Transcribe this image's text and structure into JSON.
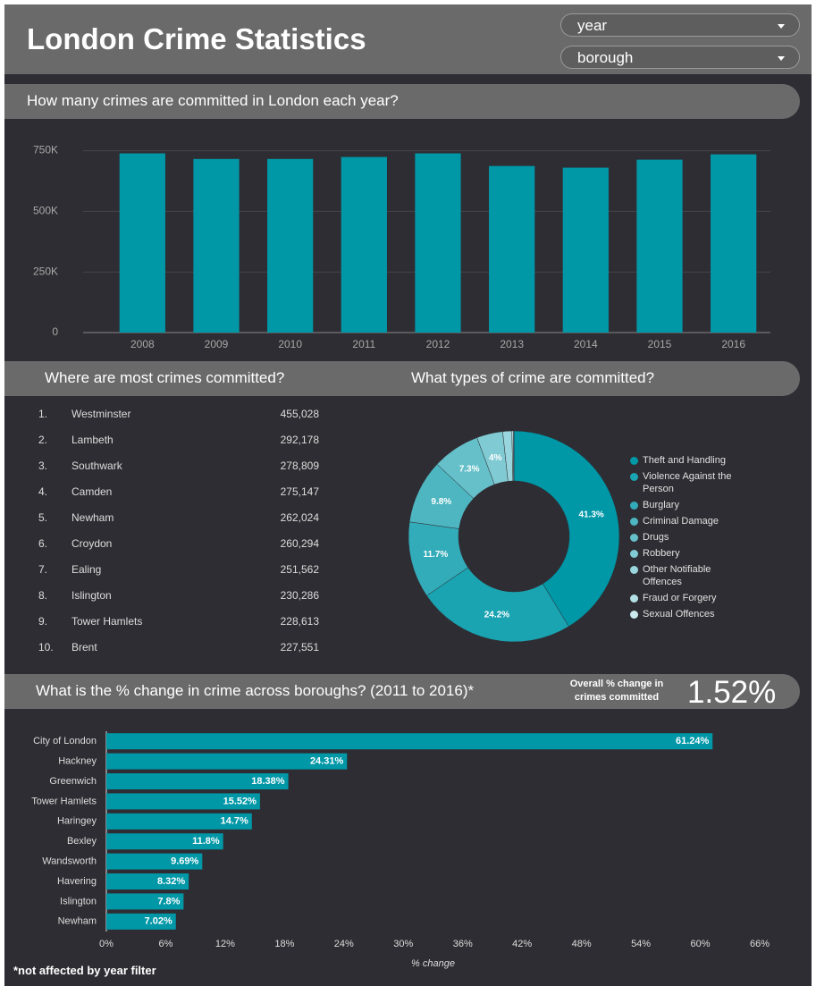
{
  "header": {
    "title": "London Crime Statistics",
    "filters": [
      "year",
      "borough"
    ]
  },
  "chart_data": [
    {
      "type": "bar",
      "title": "How many crimes are committed in London each year?",
      "categories": [
        "2008",
        "2009",
        "2010",
        "2011",
        "2012",
        "2013",
        "2014",
        "2015",
        "2016"
      ],
      "values": [
        739000,
        716000,
        716000,
        724000,
        739000,
        687000,
        680000,
        713000,
        735000
      ],
      "color": "#0097a7",
      "ylim": [
        0,
        800000
      ],
      "yticks": [
        0,
        {
          "value": 250000,
          "label": "250K"
        },
        {
          "value": 500000,
          "label": "500K"
        },
        {
          "value": 750000,
          "label": "750K"
        }
      ],
      "grid": true
    },
    {
      "type": "donut",
      "title": "What types of crime are committed?",
      "categories": [
        "Theft and Handling",
        "Violence Against the Person",
        "Burglary",
        "Criminal Damage",
        "Drugs",
        "Robbery",
        "Other Notifiable Offences",
        "Fraud or Forgery",
        "Sexual Offences"
      ],
      "values": [
        41.3,
        24.2,
        11.7,
        9.8,
        7.3,
        4,
        1.4,
        0.2,
        0.1
      ],
      "value_labels": [
        "41.3%",
        "24.2%",
        "11.7%",
        "9.8%",
        "7.3%",
        "4%",
        null,
        null,
        null
      ],
      "colors": [
        "#0097a7",
        "#1aa3b1",
        "#33acb9",
        "#4db6c1",
        "#66c0ca",
        "#80cbd3",
        "#99d5dc",
        "#b3e0e5",
        "#cceaed"
      ],
      "legend": "right"
    },
    {
      "type": "hbar",
      "title": "What is the % change in crime across boroughs? (2011 to 2016)*",
      "categories": [
        "City of London",
        "Hackney",
        "Greenwich",
        "Tower Hamlets",
        "Haringey",
        "Bexley",
        "Wandsworth",
        "Havering",
        "Islington",
        "Newham"
      ],
      "values": [
        61.24,
        24.31,
        18.38,
        15.52,
        14.7,
        11.8,
        9.69,
        8.32,
        7.8,
        7.02
      ],
      "value_labels": [
        "61.24%",
        "24.31%",
        "18.38%",
        "15.52%",
        "14.7%",
        "11.8%",
        "9.69%",
        "8.32%",
        "7.8%",
        "7.02%"
      ],
      "color": "#0097a7",
      "xlim": [
        0,
        66
      ],
      "xticks": [
        {
          "value": 0,
          "label": "0%"
        },
        {
          "value": 6,
          "label": "6%"
        },
        {
          "value": 12,
          "label": "12%"
        },
        {
          "value": 18,
          "label": "18%"
        },
        {
          "value": 24,
          "label": "24%"
        },
        {
          "value": 30,
          "label": "30%"
        },
        {
          "value": 36,
          "label": "36%"
        },
        {
          "value": 42,
          "label": "42%"
        },
        {
          "value": 48,
          "label": "48%"
        },
        {
          "value": 54,
          "label": "54%"
        },
        {
          "value": 60,
          "label": "60%"
        },
        {
          "value": 66,
          "label": "66%"
        }
      ],
      "xlabel": "% change"
    }
  ],
  "ranking": {
    "title": "Where are most crimes committed?",
    "rows": [
      [
        "1.",
        "Westminster",
        "455,028"
      ],
      [
        "2.",
        "Lambeth",
        "292,178"
      ],
      [
        "3.",
        "Southwark",
        "278,809"
      ],
      [
        "4.",
        "Camden",
        "275,147"
      ],
      [
        "5.",
        "Newham",
        "262,024"
      ],
      [
        "6.",
        "Croydon",
        "260,294"
      ],
      [
        "7.",
        "Ealing",
        "251,562"
      ],
      [
        "8.",
        "Islington",
        "230,286"
      ],
      [
        "9.",
        "Tower Hamlets",
        "228,613"
      ],
      [
        "10.",
        "Brent",
        "227,551"
      ]
    ]
  },
  "kpi": {
    "label": "Overall % change in crimes committed",
    "value": "1.52%"
  },
  "footnote": "*not affected by year filter"
}
